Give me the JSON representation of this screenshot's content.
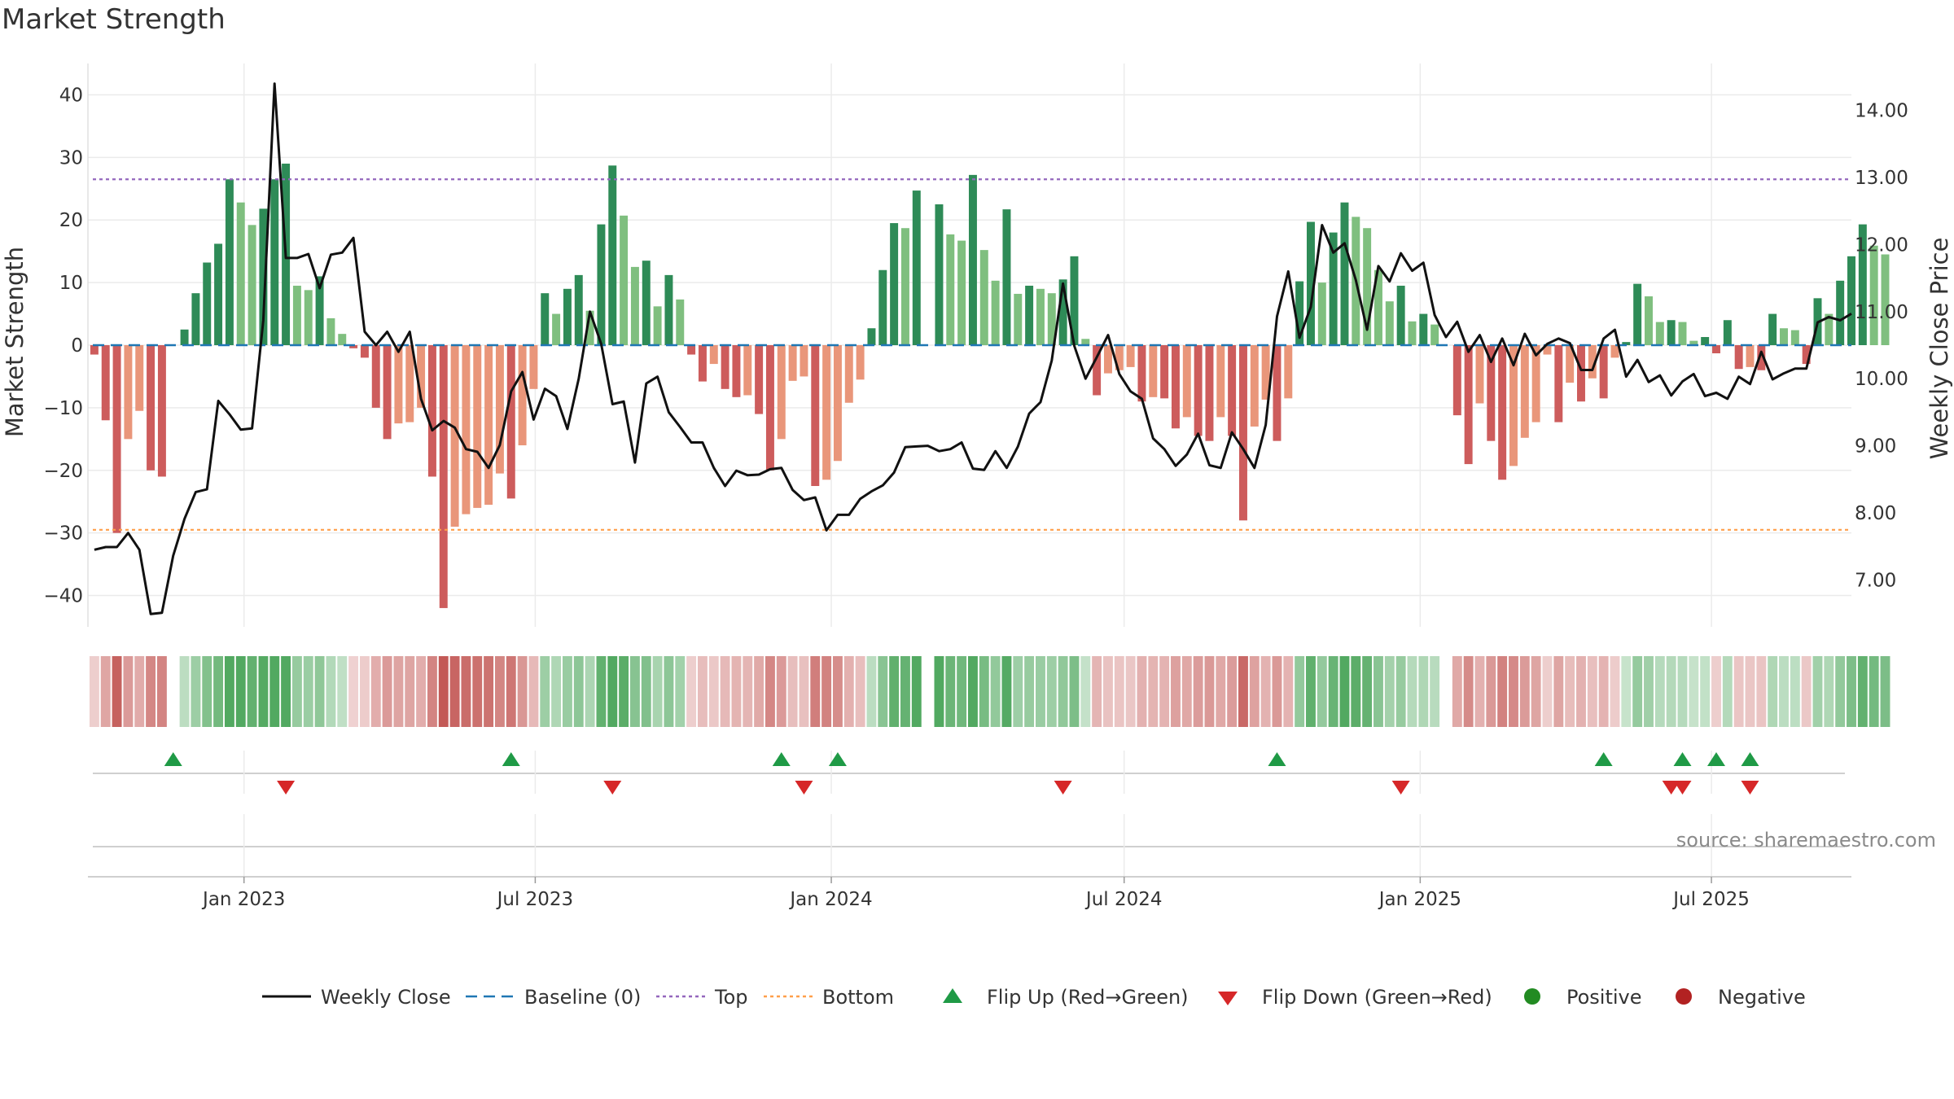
{
  "title": "Market Strength",
  "source": "source: sharemaestro.com",
  "chart_data": {
    "type": "bar",
    "title": "Market Strength",
    "ylabel_left": "Market Strength",
    "ylabel_right": "Weekly Close Price",
    "ylim_left": [
      -45,
      45
    ],
    "ylim_right": [
      6.3,
      14.7
    ],
    "yticks_left": [
      40,
      30,
      20,
      10,
      0,
      -10,
      -20,
      -30,
      -40
    ],
    "yticks_left_labels": [
      "40",
      "30",
      "20",
      "10",
      "0",
      "−10",
      "−20",
      "−30",
      "−40"
    ],
    "yticks_right": [
      14,
      13,
      12,
      11,
      10,
      9,
      8,
      7
    ],
    "yticks_right_labels": [
      "14.00",
      "13.00",
      "12.00",
      "11.00",
      "10.00",
      "9.00",
      "8.00",
      "7.00"
    ],
    "top_threshold": 26.5,
    "bottom_threshold": -29.5,
    "x_start": "2022-09-26",
    "x_end": "2025-09-26",
    "x_ticks": [
      {
        "date": "2023-01-01",
        "label": "Jan 2023"
      },
      {
        "date": "2023-07-01",
        "label": "Jul 2023"
      },
      {
        "date": "2024-01-01",
        "label": "Jan 2024"
      },
      {
        "date": "2024-07-01",
        "label": "Jul 2024"
      },
      {
        "date": "2025-01-01",
        "label": "Jan 2025"
      },
      {
        "date": "2025-07-01",
        "label": "Jul 2025"
      }
    ],
    "first_week": "2022-09-30",
    "strength": [
      -1.5,
      -12,
      -30,
      -15,
      -10.5,
      -20,
      -21,
      0,
      2.5,
      8.3,
      13.2,
      16.2,
      26.5,
      22.8,
      19.2,
      21.8,
      26.5,
      29,
      9.5,
      8.8,
      11,
      4.3,
      1.8,
      -0.5,
      -2,
      -10,
      -15,
      -12.5,
      -12.3,
      -10,
      -21,
      -42,
      -29,
      -27,
      -26,
      -25.5,
      -20.5,
      -24.5,
      -16,
      -7,
      8.3,
      5,
      9,
      11.2,
      5.5,
      19.3,
      28.7,
      20.7,
      12.5,
      13.5,
      6.2,
      11.2,
      7.3,
      -1.5,
      -5.8,
      -3,
      -7,
      -8.3,
      -8,
      -11,
      -20,
      -15,
      -5.7,
      -5,
      -22.5,
      -21.5,
      -18.5,
      -9.2,
      -5.5,
      2.7,
      12,
      19.5,
      18.7,
      24.7,
      0,
      22.5,
      17.7,
      16.7,
      27.2,
      15.2,
      10.3,
      21.7,
      8.2,
      9.5,
      9,
      8.3,
      10.5,
      14.2,
      1,
      -8,
      -4.5,
      -4,
      -3.5,
      -9,
      -8.3,
      -8.5,
      -13.3,
      -11.5,
      -14.5,
      -15.3,
      -11.5,
      -14.5,
      -28,
      -13,
      -8.7,
      -15.3,
      -8.5,
      10.2,
      19.7,
      10,
      18,
      22.8,
      20.5,
      18.7,
      12,
      7,
      9.5,
      3.8,
      5,
      3.3,
      0,
      -11.2,
      -19,
      -9.3,
      -15.3,
      -21.5,
      -19.3,
      -14.8,
      -12.3,
      -1.5,
      -12.3,
      -6,
      -9,
      -5.3,
      -8.5,
      -2,
      0.5,
      9.8,
      7.8,
      3.7,
      4,
      3.7,
      0.7,
      1.3,
      -1.3,
      4,
      -3.8,
      -3.5,
      -4,
      5,
      2.7,
      2.4,
      -3,
      7.5,
      5,
      10.3,
      14.2,
      19.3,
      15.9,
      14.5
    ],
    "close": [
      7.45,
      7.49,
      7.49,
      7.7,
      7.45,
      6.49,
      6.51,
      7.36,
      7.91,
      8.31,
      8.35,
      9.67,
      9.47,
      9.24,
      9.26,
      10.87,
      14.4,
      11.8,
      11.8,
      11.86,
      11.35,
      11.85,
      11.88,
      12.1,
      10.7,
      10.5,
      10.7,
      10.4,
      10.7,
      9.7,
      9.23,
      9.37,
      9.27,
      8.95,
      8.91,
      8.67,
      9.01,
      9.81,
      10.1,
      9.39,
      9.85,
      9.74,
      9.25,
      10,
      11,
      10.52,
      9.62,
      9.66,
      8.75,
      9.93,
      10.03,
      9.5,
      9.28,
      9.05,
      9.05,
      8.67,
      8.4,
      8.63,
      8.56,
      8.57,
      8.65,
      8.67,
      8.34,
      8.19,
      8.23,
      7.74,
      7.97,
      7.97,
      8.21,
      8.32,
      8.41,
      8.6,
      8.98,
      8.99,
      9,
      8.92,
      8.95,
      9.05,
      8.66,
      8.64,
      8.92,
      8.67,
      8.99,
      9.48,
      9.65,
      10.27,
      11.42,
      10.49,
      10,
      10.32,
      10.65,
      10.07,
      9.81,
      9.7,
      9.11,
      8.95,
      8.7,
      8.87,
      9.18,
      8.71,
      8.67,
      9.2,
      8.95,
      8.67,
      9.31,
      10.93,
      11.6,
      10.61,
      11.07,
      12.29,
      11.88,
      12.02,
      11.47,
      10.73,
      11.68,
      11.45,
      11.87,
      11.61,
      11.73,
      10.95,
      10.62,
      10.85,
      10.4,
      10.65,
      10.25,
      10.6,
      10.2,
      10.67,
      10.35,
      10.52,
      10.6,
      10.53,
      10.13,
      10.13,
      10.6,
      10.73,
      10.03,
      10.28,
      9.95,
      10.05,
      9.75,
      9.96,
      10.07,
      9.74,
      9.79,
      9.7,
      10.03,
      9.92,
      10.4,
      9.99,
      10.08,
      10.15,
      10.15,
      10.84,
      10.92,
      10.87,
      10.97
    ],
    "flip_up_dates": [
      "2022-11-18",
      "2023-06-16",
      "2023-12-01",
      "2024-01-05",
      "2024-10-04",
      "2025-04-25",
      "2025-06-13",
      "2025-07-04",
      "2025-07-25"
    ],
    "flip_down_dates": [
      "2023-01-27",
      "2023-08-18",
      "2023-12-15",
      "2024-05-24",
      "2024-12-20",
      "2025-06-06",
      "2025-06-13",
      "2025-07-25"
    ],
    "legend": [
      "Weekly Close",
      "Baseline (0)",
      "Top",
      "Bottom",
      "Flip Up (Red→Green)",
      "Flip Down (Green→Red)",
      "Positive",
      "Negative"
    ],
    "colors": {
      "strong_pos": "#2e8b57",
      "weak_pos": "#7fbf7f",
      "strong_neg": "#cd5c5c",
      "weak_neg": "#e9967a",
      "close_line": "#111111",
      "baseline": "#1f77b4",
      "top": "#9467bd",
      "bottom": "#ff9f4a",
      "flip_up": "#1f9a46",
      "flip_down": "#d62728",
      "positive_dot": "#228b22",
      "negative_dot": "#b22222",
      "grid": "#ebebeb"
    }
  }
}
